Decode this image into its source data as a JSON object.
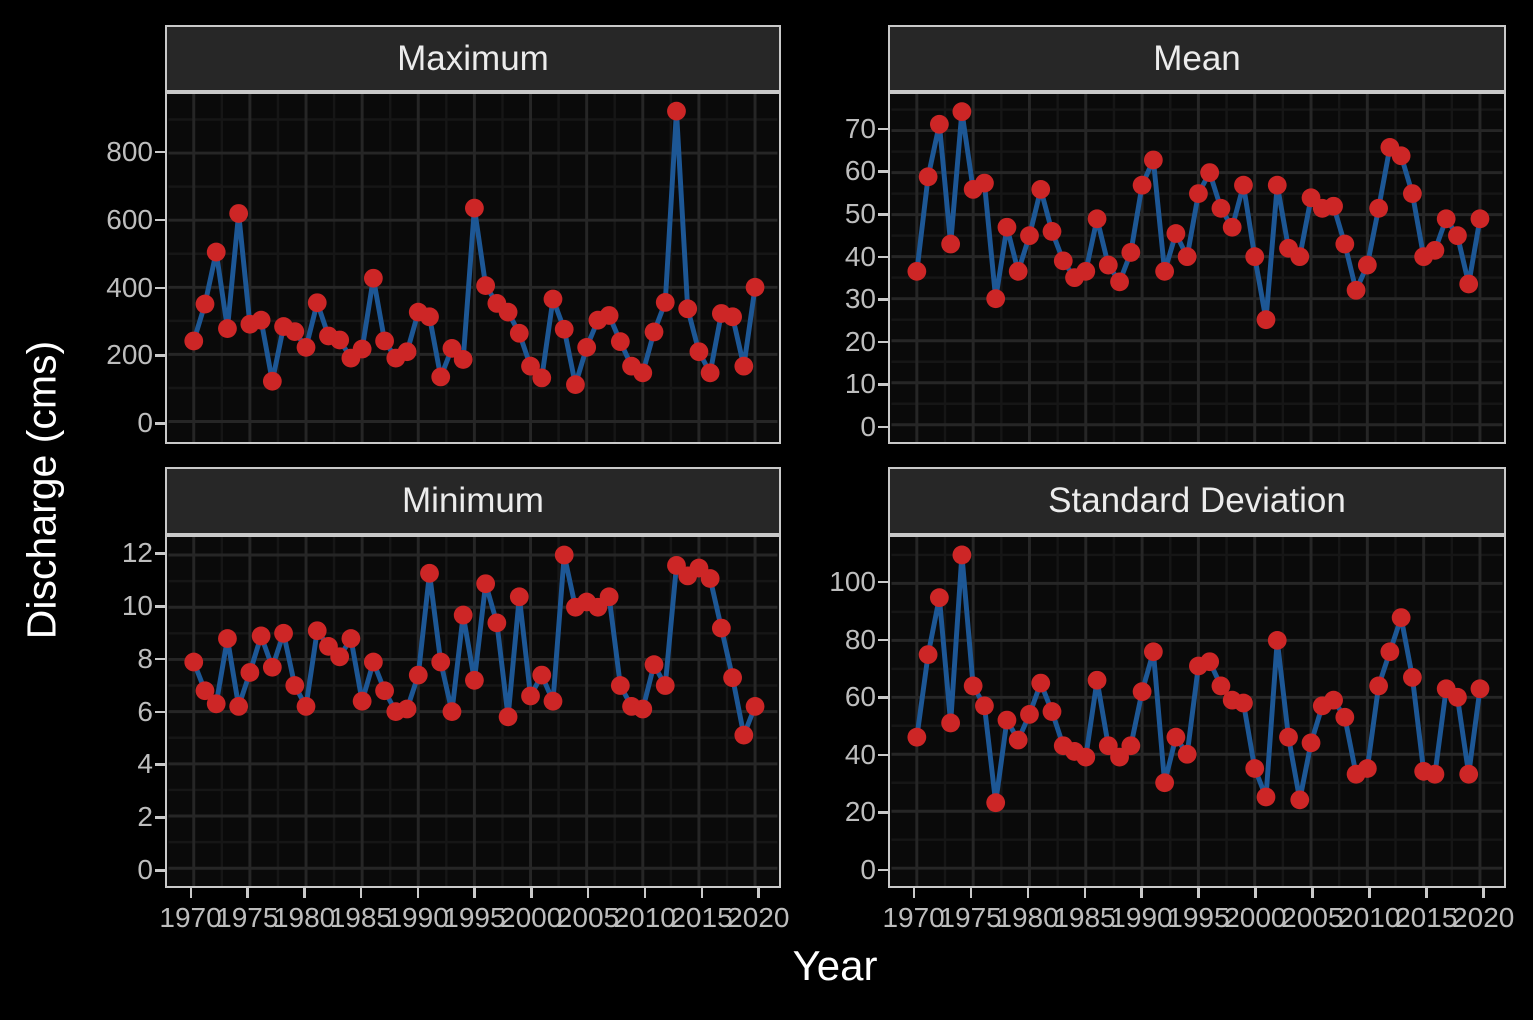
{
  "figure": {
    "y_axis_title": "Discharge (cms)",
    "x_axis_title": "Year",
    "colors": {
      "background": "#000000",
      "panel_background": "#0a0a0a",
      "strip_background": "#272727",
      "strip_text": "#ececec",
      "panel_border": "#c9c9c9",
      "grid_major": "#262626",
      "grid_minor": "#161616",
      "tick_label": "#bdbdbd",
      "tick_mark": "#c9c9c9",
      "axis_title": "#ffffff",
      "point": "#cd2626",
      "line": "#1d5795"
    }
  },
  "chart_data": [
    {
      "type": "line",
      "title": "Maximum",
      "x": [
        1970,
        1971,
        1972,
        1973,
        1974,
        1975,
        1976,
        1977,
        1978,
        1979,
        1980,
        1981,
        1982,
        1983,
        1984,
        1985,
        1986,
        1987,
        1988,
        1989,
        1990,
        1991,
        1992,
        1993,
        1994,
        1995,
        1996,
        1997,
        1998,
        1999,
        2000,
        2001,
        2002,
        2003,
        2004,
        2005,
        2006,
        2007,
        2008,
        2009,
        2010,
        2011,
        2012,
        2013,
        2014,
        2015,
        2016,
        2017,
        2018,
        2019,
        2020
      ],
      "values": [
        240,
        350,
        505,
        277,
        620,
        290,
        302,
        120,
        283,
        268,
        221,
        354,
        255,
        243,
        189,
        216,
        427,
        240,
        189,
        208,
        326,
        312,
        133,
        218,
        185,
        636,
        405,
        352,
        326,
        263,
        165,
        130,
        365,
        275,
        110,
        221,
        302,
        316,
        238,
        165,
        145,
        267,
        355,
        925,
        336,
        208,
        145,
        322,
        312,
        165,
        400
      ],
      "ylim": [
        -61,
        976
      ],
      "y_ticks": [
        0,
        200,
        400,
        600,
        800
      ],
      "y_minor": [
        100,
        300,
        500,
        700,
        900
      ],
      "xlim": [
        1967.75,
        2022.0
      ],
      "x_ticks": [
        1970,
        1975,
        1980,
        1985,
        1990,
        1995,
        2000,
        2005,
        2010,
        2015,
        2020
      ],
      "x_minor": [
        1972.5,
        1977.5,
        1982.5,
        1987.5,
        1992.5,
        1997.5,
        2002.5,
        2007.5,
        2012.5,
        2017.5
      ],
      "grid": true,
      "legend": "none",
      "show_x_labels": false
    },
    {
      "type": "line",
      "title": "Mean",
      "x": [
        1970,
        1971,
        1972,
        1973,
        1974,
        1975,
        1976,
        1977,
        1978,
        1979,
        1980,
        1981,
        1982,
        1983,
        1984,
        1985,
        1986,
        1987,
        1988,
        1989,
        1990,
        1991,
        1992,
        1993,
        1994,
        1995,
        1996,
        1997,
        1998,
        1999,
        2000,
        2001,
        2002,
        2003,
        2004,
        2005,
        2006,
        2007,
        2008,
        2009,
        2010,
        2011,
        2012,
        2013,
        2014,
        2015,
        2016,
        2017,
        2018,
        2019,
        2020
      ],
      "values": [
        36.5,
        59,
        71.5,
        43,
        74.5,
        56,
        57.5,
        30,
        47,
        36.5,
        45,
        56,
        46,
        39,
        35,
        36.5,
        49,
        38,
        34,
        41,
        57,
        63,
        36.5,
        45.5,
        40,
        55,
        60,
        51.5,
        47,
        57,
        40,
        25,
        57,
        42,
        40,
        54,
        51.5,
        52,
        43,
        32,
        38,
        51.5,
        66,
        64,
        55,
        40,
        41.5,
        49,
        45,
        33.5,
        49
      ],
      "ylim": [
        -4.1,
        78.7
      ],
      "y_ticks": [
        0,
        10,
        20,
        30,
        40,
        50,
        60,
        70
      ],
      "y_minor": [
        5,
        15,
        25,
        35,
        45,
        55,
        65,
        75
      ],
      "xlim": [
        1967.75,
        2022.0
      ],
      "x_ticks": [
        1970,
        1975,
        1980,
        1985,
        1990,
        1995,
        2000,
        2005,
        2010,
        2015,
        2020
      ],
      "x_minor": [
        1972.5,
        1977.5,
        1982.5,
        1987.5,
        1992.5,
        1997.5,
        2002.5,
        2007.5,
        2012.5,
        2017.5
      ],
      "grid": true,
      "legend": "none",
      "show_x_labels": false
    },
    {
      "type": "line",
      "title": "Minimum",
      "x": [
        1970,
        1971,
        1972,
        1973,
        1974,
        1975,
        1976,
        1977,
        1978,
        1979,
        1980,
        1981,
        1982,
        1983,
        1984,
        1985,
        1986,
        1987,
        1988,
        1989,
        1990,
        1991,
        1992,
        1993,
        1994,
        1995,
        1996,
        1997,
        1998,
        1999,
        2000,
        2001,
        2002,
        2003,
        2004,
        2005,
        2006,
        2007,
        2008,
        2009,
        2010,
        2011,
        2012,
        2013,
        2014,
        2015,
        2016,
        2017,
        2018,
        2019,
        2020
      ],
      "values": [
        7.9,
        6.8,
        6.3,
        8.8,
        6.2,
        7.5,
        8.9,
        7.7,
        9.0,
        7.0,
        6.2,
        9.1,
        8.5,
        8.1,
        8.8,
        6.4,
        7.9,
        6.8,
        6.0,
        6.1,
        7.4,
        11.3,
        7.9,
        6.0,
        9.7,
        7.2,
        10.9,
        9.4,
        5.8,
        10.4,
        6.6,
        7.4,
        6.4,
        12.0,
        10.0,
        10.2,
        10.0,
        10.4,
        7.0,
        6.2,
        6.1,
        7.8,
        7.0,
        11.6,
        11.2,
        11.5,
        11.1,
        9.2,
        7.3,
        5.1,
        6.2
      ],
      "ylim": [
        -0.68,
        12.69
      ],
      "y_ticks": [
        0,
        2,
        4,
        6,
        8,
        10,
        12
      ],
      "y_minor": [
        1,
        3,
        5,
        7,
        9,
        11
      ],
      "xlim": [
        1967.75,
        2022.0
      ],
      "x_ticks": [
        1970,
        1975,
        1980,
        1985,
        1990,
        1995,
        2000,
        2005,
        2010,
        2015,
        2020
      ],
      "x_minor": [
        1972.5,
        1977.5,
        1982.5,
        1987.5,
        1992.5,
        1997.5,
        2002.5,
        2007.5,
        2012.5,
        2017.5
      ],
      "grid": true,
      "legend": "none",
      "show_x_labels": true
    },
    {
      "type": "line",
      "title": "Standard Deviation",
      "x": [
        1970,
        1971,
        1972,
        1973,
        1974,
        1975,
        1976,
        1977,
        1978,
        1979,
        1980,
        1981,
        1982,
        1983,
        1984,
        1985,
        1986,
        1987,
        1988,
        1989,
        1990,
        1991,
        1992,
        1993,
        1994,
        1995,
        1996,
        1997,
        1998,
        1999,
        2000,
        2001,
        2002,
        2003,
        2004,
        2005,
        2006,
        2007,
        2008,
        2009,
        2010,
        2011,
        2012,
        2013,
        2014,
        2015,
        2016,
        2017,
        2018,
        2019,
        2020
      ],
      "values": [
        46,
        75,
        95,
        51,
        110,
        64,
        57,
        23,
        52,
        45,
        54,
        65,
        55,
        43,
        41,
        39,
        66,
        43,
        39,
        43,
        62,
        76,
        30,
        46,
        40,
        71,
        72.5,
        64,
        59,
        58,
        35,
        25,
        80,
        46,
        24,
        44,
        57,
        59,
        53,
        33,
        35,
        64,
        76,
        88,
        67,
        34,
        33,
        63,
        60,
        33,
        63
      ],
      "ylim": [
        -6.26,
        116.3
      ],
      "y_ticks": [
        0,
        20,
        40,
        60,
        80,
        100
      ],
      "y_minor": [
        10,
        30,
        50,
        70,
        90,
        110
      ],
      "xlim": [
        1967.75,
        2022.0
      ],
      "x_ticks": [
        1970,
        1975,
        1980,
        1985,
        1990,
        1995,
        2000,
        2005,
        2010,
        2015,
        2020
      ],
      "x_minor": [
        1972.5,
        1977.5,
        1982.5,
        1987.5,
        1992.5,
        1997.5,
        2002.5,
        2007.5,
        2012.5,
        2017.5
      ],
      "grid": true,
      "legend": "none",
      "show_x_labels": true
    }
  ]
}
